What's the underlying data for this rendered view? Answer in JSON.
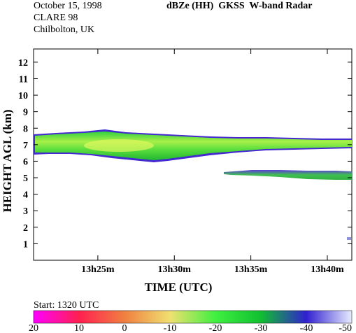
{
  "header": {
    "date": "October 15, 1998",
    "campaign": "CLARE 98",
    "site": "Chilbolton, UK",
    "product": "dBZe (HH)",
    "instrument": "GKSS  W-band Radar"
  },
  "colorbar": {
    "start_label": "Start: 1320 UTC",
    "tick_labels": [
      "20",
      "10",
      "0",
      "-10",
      "-20",
      "-30",
      "-40",
      "-50"
    ],
    "stops": [
      "#ff00ff",
      "#ff2050",
      "#f08040",
      "#f0e070",
      "#40f040",
      "#10c030",
      "#3020d0",
      "#e8ecff"
    ]
  },
  "chart_data": {
    "type": "heatmap",
    "title": "dBZe (HH)  GKSS  W-band Radar",
    "xlabel": "TIME (UTC)",
    "ylabel": "HEIGHT AGL (km)",
    "xlim": [
      "13h20.8m",
      "13h41.6m"
    ],
    "ylim": [
      0,
      12.8
    ],
    "x_ticks": [
      "13h25m",
      "13h30m",
      "13h35m",
      "13h40m"
    ],
    "y_ticks": [
      "1",
      "2",
      "3",
      "4",
      "5",
      "6",
      "7",
      "8",
      "9",
      "10",
      "11",
      "12"
    ],
    "colorscale_dbze": [
      20,
      10,
      0,
      -10,
      -20,
      -30,
      -40,
      -50
    ],
    "features": [
      {
        "feature": "upper cloud layer",
        "time_start_min": 20.8,
        "time_end_min": 41.6,
        "base_km": 6.0,
        "top_km": 7.8,
        "peak_dbze": -10
      },
      {
        "feature": "lower cloud layer",
        "time_start_min": 33.3,
        "time_end_min": 41.6,
        "base_km": 4.8,
        "top_km": 5.3,
        "peak_dbze": -25
      }
    ]
  }
}
